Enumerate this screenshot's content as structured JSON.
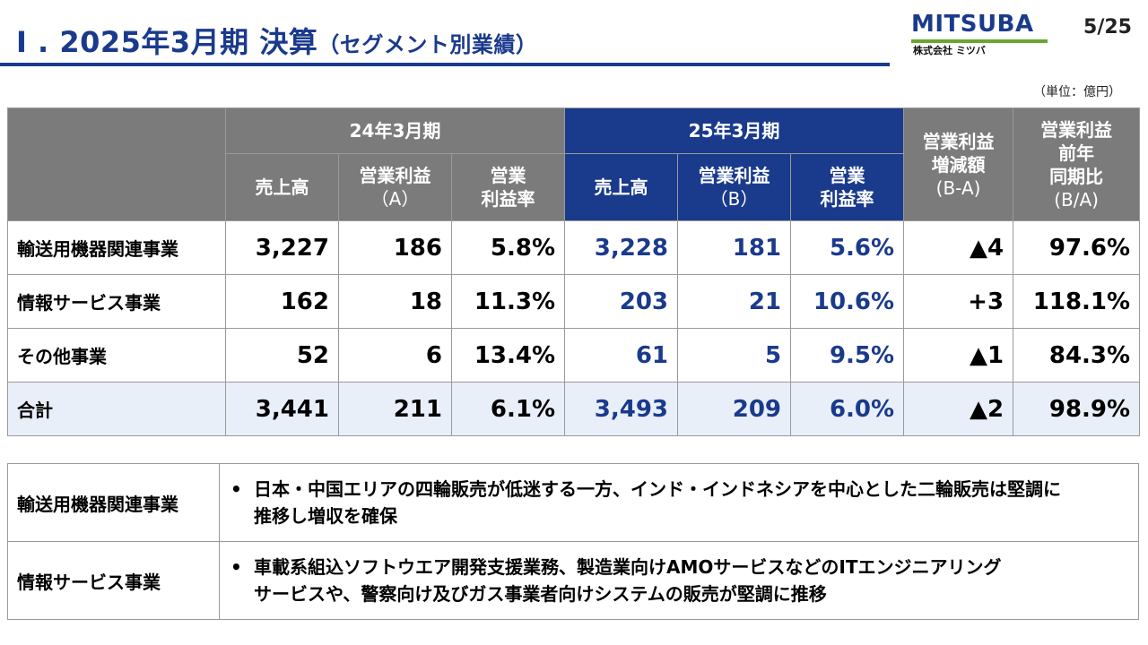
{
  "header": {
    "title_main": "I . 2025年3月期 決算",
    "title_sub": "（セグメント別業績）",
    "logo_text": "MITSUBA",
    "logo_sub": "株式会社 ミツバ",
    "page": "5/25",
    "unit": "（単位：億円）",
    "colors": {
      "brand_blue": "#1a3a8c",
      "logo_green": "#6aa531",
      "header_gray": "#7b7b7b"
    }
  },
  "table": {
    "group_prev": "24年3月期",
    "group_curr": "25年3月期",
    "col_sales": "売上高",
    "col_op_a": "営業利益",
    "col_op_a_sub": "（A）",
    "col_op_b": "営業利益",
    "col_op_b_sub": "（B）",
    "col_margin_line1": "営業",
    "col_margin_line2": "利益率",
    "col_diff_line1": "営業利益",
    "col_diff_line2": "増減額",
    "col_diff_line3": "(B-A)",
    "col_ratio_line1": "営業利益",
    "col_ratio_line2": "前年",
    "col_ratio_line3": "同期比",
    "col_ratio_line4": "(B/A)",
    "rows": [
      {
        "label": "輸送用機器関連事業",
        "prev_sales": "3,227",
        "prev_op": "186",
        "prev_margin": "5.8%",
        "curr_sales": "3,228",
        "curr_op": "181",
        "curr_margin": "5.6%",
        "diff": "▲4",
        "ratio": "97.6%"
      },
      {
        "label": "情報サービス事業",
        "prev_sales": "162",
        "prev_op": "18",
        "prev_margin": "11.3%",
        "curr_sales": "203",
        "curr_op": "21",
        "curr_margin": "10.6%",
        "diff": "+3",
        "ratio": "118.1%"
      },
      {
        "label": "その他事業",
        "prev_sales": "52",
        "prev_op": "6",
        "prev_margin": "13.4%",
        "curr_sales": "61",
        "curr_op": "5",
        "curr_margin": "9.5%",
        "diff": "▲1",
        "ratio": "84.3%"
      },
      {
        "label": "合計",
        "prev_sales": "3,441",
        "prev_op": "211",
        "prev_margin": "6.1%",
        "curr_sales": "3,493",
        "curr_op": "209",
        "curr_margin": "6.0%",
        "diff": "▲2",
        "ratio": "98.9%"
      }
    ]
  },
  "notes": [
    {
      "label": "輸送用機器関連事業",
      "bullet": "•",
      "line1": "日本・中国エリアの四輪販売が低迷する一方、インド・インドネシアを中心とした二輪販売は堅調に",
      "line2": "推移し増収を確保"
    },
    {
      "label": "情報サービス事業",
      "bullet": "•",
      "line1": "車載系組込ソフトウエア開発支援業務、製造業向けAMOサービスなどのITエンジニアリング",
      "line2": "サービスや、警察向け及びガス事業者向けシステムの販売が堅調に推移"
    }
  ]
}
